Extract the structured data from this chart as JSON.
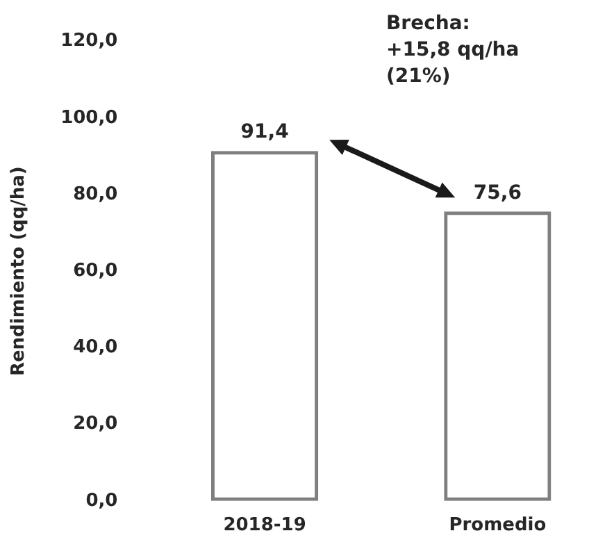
{
  "chart_data": {
    "type": "bar",
    "ylabel": "Rendimiento (qq/ha)",
    "categories": [
      "2018-19",
      "Promedio"
    ],
    "values": [
      91.4,
      75.6
    ],
    "value_labels": [
      "91,4",
      "75,6"
    ],
    "color": "#7f7f7f",
    "ylim": [
      0,
      120
    ],
    "yticks": [
      {
        "value": 0,
        "label": "0,0"
      },
      {
        "value": 20,
        "label": "20,0"
      },
      {
        "value": 40,
        "label": "40,0"
      },
      {
        "value": 60,
        "label": "60,0"
      },
      {
        "value": 80,
        "label": "80,0"
      },
      {
        "value": 100,
        "label": "100,0"
      },
      {
        "value": 120,
        "label": "120,0"
      }
    ],
    "grid": false,
    "legend": false,
    "annotations": [
      "Brecha:\n+15,8 qq/ha\n(21%)"
    ]
  }
}
